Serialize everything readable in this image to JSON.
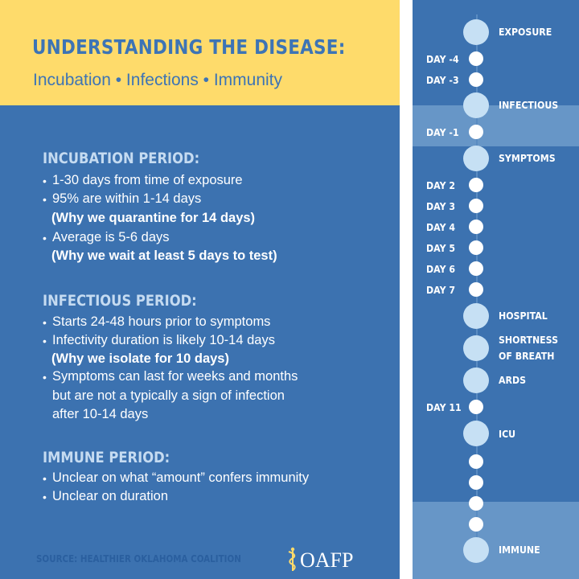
{
  "header": {
    "title": "UNDERSTANDING THE DISEASE:",
    "subtitle": "Incubation • Infections • Immunity"
  },
  "sections": {
    "incubation": {
      "heading": "INCUBATION PERIOD:",
      "lines": [
        "1-30 days from time of exposure",
        "95% are within 1-14 days",
        "(Why we quarantine for 14 days)",
        "Average is 5-6 days",
        "(Why we wait at least 5 days to test)"
      ]
    },
    "infectious": {
      "heading": "INFECTIOUS PERIOD:",
      "lines": [
        "Starts 24-48 hours prior to symptoms",
        "Infectivity duration is likely 10-14 days",
        "(Why we isolate for 10 days)",
        "Symptoms can last for weeks and months",
        "but are not a typically a sign of infection",
        "after 10-14 days"
      ]
    },
    "immune": {
      "heading": "IMMUNE PERIOD:",
      "lines": [
        "Unclear on what “amount” confers immunity",
        "Unclear on duration"
      ]
    }
  },
  "bullet_char": "•",
  "footer": {
    "source": "SOURCE: HEALTHIER OKLAHOMA COALITION",
    "logo_text": "OAFP"
  },
  "timeline": {
    "events": [
      "EXPOSURE",
      "INFECTIOUS",
      "SYMPTOMS",
      "HOSPITAL",
      "SHORTNESS",
      "OF BREATH",
      "ARDS",
      "ICU",
      "IMMUNE"
    ],
    "days": [
      "DAY -4",
      "DAY -3",
      "DAY -1",
      "DAY 2",
      "DAY 3",
      "DAY 4",
      "DAY 5",
      "DAY 6",
      "DAY 7",
      "DAY 11"
    ]
  },
  "colors": {
    "background": "#3c72b0",
    "header_yellow": "#fedb6b",
    "heading_light": "#c5dbf1",
    "band": "#6796c7",
    "big_dot": "#c6e0f4"
  }
}
